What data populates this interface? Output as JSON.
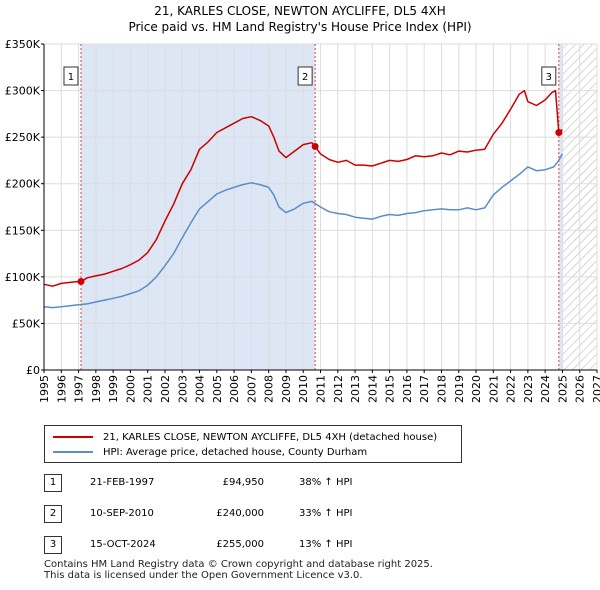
{
  "title": {
    "line1": "21, KARLES CLOSE, NEWTON AYCLIFFE, DL5 4XH",
    "line2": "Price paid vs. HM Land Registry's House Price Index (HPI)"
  },
  "chart_data": {
    "type": "line",
    "title": "21, KARLES CLOSE, NEWTON AYCLIFFE, DL5 4XH — Price paid vs. HM Land Registry's House Price Index (HPI)",
    "xlabel": "",
    "ylabel": "",
    "xlim": [
      1995,
      2027
    ],
    "ylim": [
      0,
      350000
    ],
    "x_ticks": [
      "1995",
      "1996",
      "1997",
      "1998",
      "1999",
      "2000",
      "2001",
      "2002",
      "2003",
      "2004",
      "2005",
      "2006",
      "2007",
      "2008",
      "2009",
      "2010",
      "2011",
      "2012",
      "2013",
      "2014",
      "2015",
      "2016",
      "2017",
      "2018",
      "2019",
      "2020",
      "2021",
      "2022",
      "2023",
      "2024",
      "2025",
      "2026",
      "2027"
    ],
    "y_ticks": [
      {
        "value": 0,
        "label": "£0"
      },
      {
        "value": 50000,
        "label": "£50K"
      },
      {
        "value": 100000,
        "label": "£100K"
      },
      {
        "value": 150000,
        "label": "£150K"
      },
      {
        "value": 200000,
        "label": "£200K"
      },
      {
        "value": 250000,
        "label": "£250K"
      },
      {
        "value": 300000,
        "label": "£300K"
      },
      {
        "value": 350000,
        "label": "£350K"
      }
    ],
    "grid": true,
    "shaded_ranges": [
      {
        "from": 1997.14,
        "to": 2010.69,
        "color": "#dde6f5"
      },
      {
        "from": 2024.79,
        "to": 2025.0,
        "color": "#dde6f5"
      }
    ],
    "hatched_range": {
      "from": 2025.0,
      "to": 2027.0
    },
    "series": [
      {
        "name": "21, KARLES CLOSE, NEWTON AYCLIFFE, DL5 4XH (detached house)",
        "color": "#cc0000",
        "x": [
          1995.0,
          1995.5,
          1996.0,
          1996.5,
          1997.0,
          1997.14,
          1997.5,
          1998.0,
          1998.5,
          1999.0,
          1999.5,
          2000.0,
          2000.5,
          2001.0,
          2001.5,
          2002.0,
          2002.5,
          2003.0,
          2003.5,
          2004.0,
          2004.5,
          2005.0,
          2005.5,
          2006.0,
          2006.5,
          2007.0,
          2007.5,
          2008.0,
          2008.3,
          2008.6,
          2009.0,
          2009.5,
          2010.0,
          2010.5,
          2010.69,
          2011.0,
          2011.5,
          2012.0,
          2012.5,
          2013.0,
          2013.5,
          2014.0,
          2014.5,
          2015.0,
          2015.5,
          2016.0,
          2016.5,
          2017.0,
          2017.5,
          2018.0,
          2018.5,
          2019.0,
          2019.5,
          2020.0,
          2020.5,
          2021.0,
          2021.5,
          2022.0,
          2022.5,
          2022.8,
          2023.0,
          2023.5,
          2024.0,
          2024.4,
          2024.6,
          2024.79,
          2025.0
        ],
        "values": [
          92000,
          90000,
          93000,
          94000,
          95000,
          94950,
          99000,
          101000,
          103000,
          106000,
          109000,
          113000,
          118000,
          126000,
          140000,
          160000,
          178000,
          200000,
          215000,
          237000,
          245000,
          255000,
          260000,
          265000,
          270000,
          272000,
          268000,
          262000,
          250000,
          235000,
          228000,
          235000,
          242000,
          244000,
          240000,
          232000,
          226000,
          223000,
          225000,
          220000,
          220000,
          219000,
          222000,
          225000,
          224000,
          226000,
          230000,
          229000,
          230000,
          233000,
          231000,
          235000,
          234000,
          236000,
          237000,
          253000,
          265000,
          280000,
          296000,
          300000,
          288000,
          284000,
          290000,
          298000,
          300000,
          255000,
          258000
        ]
      },
      {
        "name": "HPI: Average price, detached house, County Durham",
        "color": "#5b8dc9",
        "x": [
          1995.0,
          1995.5,
          1996.0,
          1996.5,
          1997.0,
          1997.5,
          1998.0,
          1998.5,
          1999.0,
          1999.5,
          2000.0,
          2000.5,
          2001.0,
          2001.5,
          2002.0,
          2002.5,
          2003.0,
          2003.5,
          2004.0,
          2004.5,
          2005.0,
          2005.5,
          2006.0,
          2006.5,
          2007.0,
          2007.5,
          2008.0,
          2008.3,
          2008.6,
          2009.0,
          2009.5,
          2010.0,
          2010.5,
          2011.0,
          2011.5,
          2012.0,
          2012.5,
          2013.0,
          2013.5,
          2014.0,
          2014.5,
          2015.0,
          2015.5,
          2016.0,
          2016.5,
          2017.0,
          2017.5,
          2018.0,
          2018.5,
          2019.0,
          2019.5,
          2020.0,
          2020.5,
          2021.0,
          2021.5,
          2022.0,
          2022.5,
          2023.0,
          2023.5,
          2024.0,
          2024.5,
          2024.79,
          2025.0
        ],
        "values": [
          68000,
          67000,
          68000,
          69000,
          70000,
          71000,
          73000,
          75000,
          77000,
          79000,
          82000,
          85000,
          91000,
          100000,
          112000,
          125000,
          142000,
          158000,
          173000,
          181000,
          189000,
          193000,
          196000,
          199000,
          201000,
          199000,
          196000,
          188000,
          175000,
          169000,
          173000,
          179000,
          181000,
          175000,
          170000,
          168000,
          167000,
          164000,
          163000,
          162000,
          165000,
          167000,
          166000,
          168000,
          169000,
          171000,
          172000,
          173000,
          172000,
          172000,
          174000,
          172000,
          174000,
          188000,
          196000,
          203000,
          210000,
          218000,
          214000,
          215000,
          218000,
          225000,
          232000
        ]
      }
    ],
    "markers": [
      {
        "label": "1",
        "x": 1997.14,
        "value": 94950
      },
      {
        "label": "2",
        "x": 2010.69,
        "value": 240000
      },
      {
        "label": "3",
        "x": 2024.79,
        "value": 255000
      }
    ]
  },
  "legend": [
    {
      "label": "21, KARLES CLOSE, NEWTON AYCLIFFE, DL5 4XH (detached house)",
      "color": "#cc0000"
    },
    {
      "label": "HPI: Average price, detached house, County Durham",
      "color": "#5b8dc9"
    }
  ],
  "transactions": [
    {
      "num": "1",
      "date": "21-FEB-1997",
      "price": "£94,950",
      "hpi": "38% ↑ HPI"
    },
    {
      "num": "2",
      "date": "10-SEP-2010",
      "price": "£240,000",
      "hpi": "33% ↑ HPI"
    },
    {
      "num": "3",
      "date": "15-OCT-2024",
      "price": "£255,000",
      "hpi": "13% ↑ HPI"
    }
  ],
  "footer": {
    "line1": "Contains HM Land Registry data © Crown copyright and database right 2025.",
    "line2": "This data is licensed under the Open Government Licence v3.0."
  }
}
